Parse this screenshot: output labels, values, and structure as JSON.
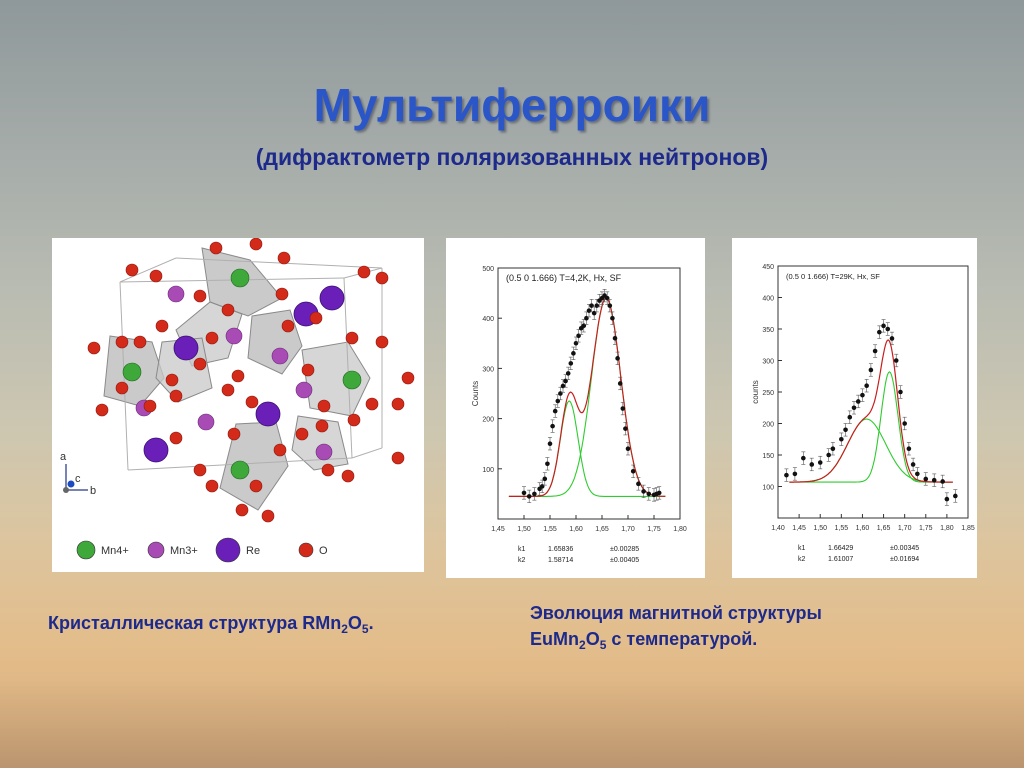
{
  "slide": {
    "title": "Мультиферроики",
    "subtitle": "(дифрактометр поляризованных нейтронов)"
  },
  "crystal": {
    "axes": {
      "a": "a",
      "b": "b",
      "c": "c"
    },
    "legend": [
      {
        "label": "Mn4+",
        "color": "#3ea83a"
      },
      {
        "label": "Mn3+",
        "color": "#a84bb4"
      },
      {
        "label": "Re",
        "color": "#6a1fb8"
      },
      {
        "label": "O",
        "color": "#d42a1a"
      }
    ]
  },
  "captions": {
    "left": {
      "pre": "Кристаллическая структура RMn",
      "s1": "2",
      "mid": "O",
      "s2": "5",
      "post": "."
    },
    "right_line1": "Эволюция магнитной структуры",
    "right_line2": {
      "pre": "EuMn",
      "s1": "2",
      "mid": "O",
      "s2": "5",
      "post": " с температурой."
    }
  },
  "chart_data": [
    {
      "type": "scatter",
      "title": "(0.5  0  1.666)  T=4,2K, Hx, SF",
      "xlabel": "",
      "ylabel": "Counts",
      "xlim": [
        1.45,
        1.8
      ],
      "ylim": [
        0,
        500
      ],
      "xticks": [
        "1,45",
        "1,50",
        "1,55",
        "1,60",
        "1,65",
        "1,70",
        "1,75",
        "1,80"
      ],
      "yticks": [
        "100",
        "200",
        "300",
        "400",
        "500"
      ],
      "fit_table": [
        {
          "name": "k1",
          "value": "1.65836",
          "err": "±0.00285"
        },
        {
          "name": "k2",
          "value": "1.58714",
          "err": "±0.00405"
        }
      ],
      "baseline": 45,
      "peaks": [
        {
          "center": 1.587,
          "amp": 190,
          "sigma": 0.017
        },
        {
          "center": 1.658,
          "amp": 395,
          "sigma": 0.028
        }
      ],
      "points": [
        [
          1.5,
          52
        ],
        [
          1.51,
          45
        ],
        [
          1.52,
          50
        ],
        [
          1.53,
          60
        ],
        [
          1.535,
          65
        ],
        [
          1.54,
          80
        ],
        [
          1.545,
          110
        ],
        [
          1.55,
          150
        ],
        [
          1.555,
          185
        ],
        [
          1.56,
          215
        ],
        [
          1.565,
          235
        ],
        [
          1.57,
          250
        ],
        [
          1.575,
          265
        ],
        [
          1.58,
          275
        ],
        [
          1.585,
          290
        ],
        [
          1.59,
          310
        ],
        [
          1.595,
          330
        ],
        [
          1.6,
          350
        ],
        [
          1.605,
          365
        ],
        [
          1.61,
          380
        ],
        [
          1.615,
          385
        ],
        [
          1.62,
          400
        ],
        [
          1.625,
          415
        ],
        [
          1.63,
          425
        ],
        [
          1.635,
          410
        ],
        [
          1.64,
          425
        ],
        [
          1.645,
          435
        ],
        [
          1.65,
          440
        ],
        [
          1.655,
          445
        ],
        [
          1.66,
          440
        ],
        [
          1.665,
          425
        ],
        [
          1.67,
          400
        ],
        [
          1.675,
          360
        ],
        [
          1.68,
          320
        ],
        [
          1.685,
          270
        ],
        [
          1.69,
          220
        ],
        [
          1.695,
          180
        ],
        [
          1.7,
          140
        ],
        [
          1.71,
          95
        ],
        [
          1.72,
          70
        ],
        [
          1.73,
          55
        ],
        [
          1.74,
          50
        ],
        [
          1.75,
          48
        ],
        [
          1.755,
          50
        ],
        [
          1.76,
          52
        ]
      ]
    },
    {
      "type": "scatter",
      "title": "(0.5 0 1.666) T=29K, Hx, SF",
      "xlabel": "",
      "ylabel": "counts",
      "xlim": [
        1.4,
        1.85
      ],
      "ylim": [
        50,
        450
      ],
      "xticks": [
        "1,40",
        "1,45",
        "1,50",
        "1,55",
        "1,60",
        "1,65",
        "1,70",
        "1,75",
        "1,80",
        "1,85"
      ],
      "yticks": [
        "100",
        "150",
        "200",
        "250",
        "300",
        "350",
        "400",
        "450"
      ],
      "fit_table": [
        {
          "name": "k1",
          "value": "1.66429",
          "err": "±0.00345"
        },
        {
          "name": "k2",
          "value": "1.61007",
          "err": "±0.01694"
        }
      ],
      "baseline": 107,
      "peaks": [
        {
          "center": 1.61,
          "amp": 100,
          "sigma": 0.045
        },
        {
          "center": 1.664,
          "amp": 175,
          "sigma": 0.02
        }
      ],
      "points": [
        [
          1.42,
          118
        ],
        [
          1.44,
          120
        ],
        [
          1.46,
          145
        ],
        [
          1.48,
          135
        ],
        [
          1.5,
          138
        ],
        [
          1.52,
          150
        ],
        [
          1.53,
          160
        ],
        [
          1.55,
          175
        ],
        [
          1.56,
          190
        ],
        [
          1.57,
          210
        ],
        [
          1.58,
          225
        ],
        [
          1.59,
          235
        ],
        [
          1.6,
          245
        ],
        [
          1.61,
          260
        ],
        [
          1.62,
          285
        ],
        [
          1.63,
          315
        ],
        [
          1.64,
          345
        ],
        [
          1.65,
          355
        ],
        [
          1.66,
          350
        ],
        [
          1.67,
          335
        ],
        [
          1.68,
          300
        ],
        [
          1.69,
          250
        ],
        [
          1.7,
          200
        ],
        [
          1.71,
          160
        ],
        [
          1.72,
          135
        ],
        [
          1.73,
          120
        ],
        [
          1.75,
          112
        ],
        [
          1.77,
          110
        ],
        [
          1.79,
          108
        ],
        [
          1.8,
          80
        ],
        [
          1.82,
          85
        ]
      ]
    }
  ]
}
